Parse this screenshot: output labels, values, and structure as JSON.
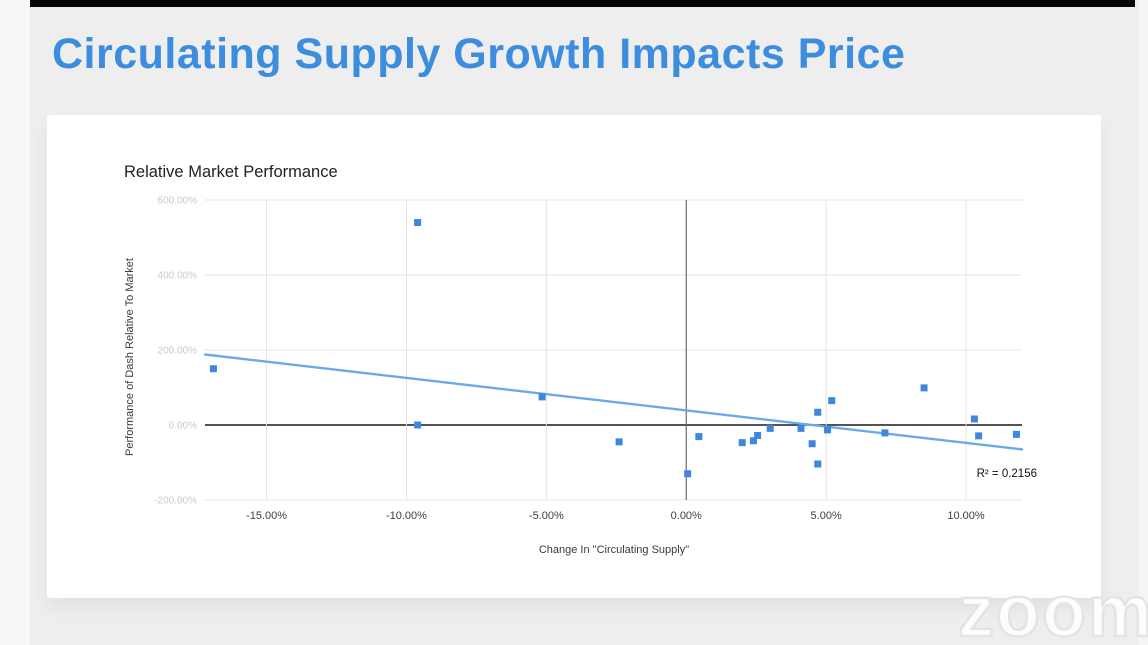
{
  "slide": {
    "title": "Circulating Supply Growth Impacts Price"
  },
  "watermark": {
    "text": "zoom"
  },
  "colors": {
    "title_blue": "#3c8dde",
    "point_blue": "#3e86de",
    "trend_blue": "#6ca9eb",
    "gridline": "#e4e4e4",
    "zero_x_line": "#1a1a1a",
    "zero_y_line": "#6b6b6b",
    "y_tick_text": "#c9c9c9",
    "x_tick_text": "#3f3f3f",
    "axis_title_text": "#3a3a3a",
    "chart_title_text": "#222222",
    "background": "#eeeeee",
    "card": "#ffffff"
  },
  "chart_data": {
    "type": "scatter",
    "title": "Relative Market Performance",
    "xlabel": "Change In \"Circulating Supply\"",
    "ylabel": "Performance of Dash Relative To Market",
    "xlim": [
      -17.2,
      12.0
    ],
    "ylim": [
      -200,
      600
    ],
    "grid": true,
    "legend": "none",
    "xticks": [
      {
        "value": -15,
        "label": "-15.00%"
      },
      {
        "value": -10,
        "label": "-10.00%"
      },
      {
        "value": -5,
        "label": "-5.00%"
      },
      {
        "value": 0,
        "label": "0.00%"
      },
      {
        "value": 5,
        "label": "5.00%"
      },
      {
        "value": 10,
        "label": "10.00%"
      }
    ],
    "yticks": [
      {
        "value": -200,
        "label": "-200.00%"
      },
      {
        "value": 0,
        "label": "0.00%"
      },
      {
        "value": 200,
        "label": "200.00%"
      },
      {
        "value": 400,
        "label": "400.00%"
      },
      {
        "value": 600,
        "label": "600.00%"
      }
    ],
    "points": [
      {
        "x": -16.9,
        "y": 150
      },
      {
        "x": -9.6,
        "y": 540
      },
      {
        "x": -9.6,
        "y": 0
      },
      {
        "x": -5.15,
        "y": 75
      },
      {
        "x": -2.4,
        "y": -45
      },
      {
        "x": 0.05,
        "y": -130
      },
      {
        "x": 0.45,
        "y": -31
      },
      {
        "x": 2.0,
        "y": -47
      },
      {
        "x": 2.4,
        "y": -42
      },
      {
        "x": 2.55,
        "y": -28
      },
      {
        "x": 3.0,
        "y": -9
      },
      {
        "x": 4.1,
        "y": -9
      },
      {
        "x": 4.5,
        "y": -50
      },
      {
        "x": 4.7,
        "y": 34
      },
      {
        "x": 4.7,
        "y": -104
      },
      {
        "x": 5.05,
        "y": -13
      },
      {
        "x": 5.2,
        "y": 65
      },
      {
        "x": 7.1,
        "y": -21
      },
      {
        "x": 8.5,
        "y": 99
      },
      {
        "x": 10.3,
        "y": 16
      },
      {
        "x": 10.45,
        "y": -29
      },
      {
        "x": 11.8,
        "y": -25
      }
    ],
    "trendline": {
      "x1": -17.2,
      "y1": 188,
      "x2": 12.0,
      "y2": -65,
      "r2_label": "R² = 0.2156"
    }
  }
}
